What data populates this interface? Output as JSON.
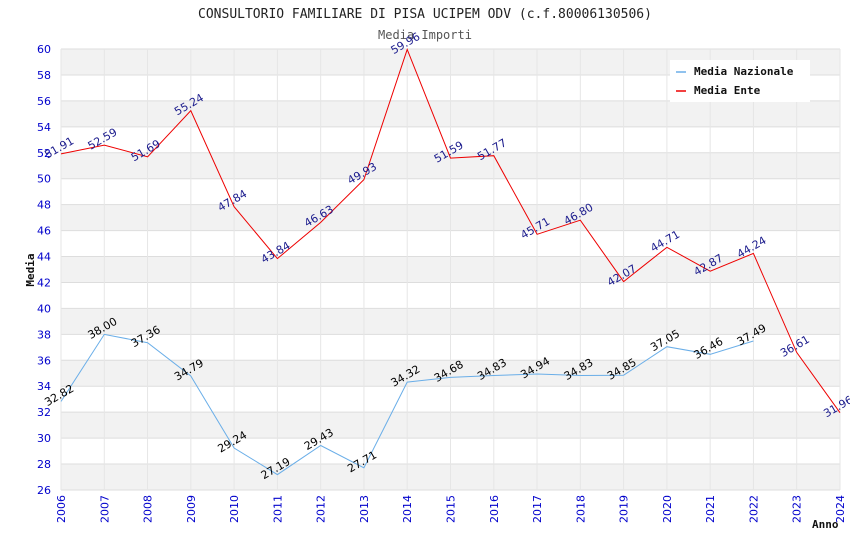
{
  "chart_data": {
    "type": "line",
    "title": "CONSULTORIO FAMILIARE DI PISA UCIPEM ODV (c.f.80006130506)",
    "subtitle": "Media Importi",
    "xlabel": "Anno",
    "ylabel": "Media",
    "ylim": [
      26,
      60
    ],
    "yticks": [
      26,
      28,
      30,
      32,
      34,
      36,
      38,
      40,
      42,
      44,
      46,
      48,
      50,
      52,
      54,
      56,
      58,
      60
    ],
    "x": [
      "2006",
      "2007",
      "2008",
      "2009",
      "2010",
      "2011",
      "2012",
      "2013",
      "2014",
      "2015",
      "2016",
      "2017",
      "2018",
      "2019",
      "2020",
      "2021",
      "2022",
      "2023",
      "2024"
    ],
    "grid": "horizontal bands",
    "legend_position": "top-right",
    "series": [
      {
        "name": "Media Nazionale",
        "color": "#6aaee8",
        "label_color": "#000000",
        "values": [
          32.82,
          38.0,
          37.36,
          34.79,
          29.24,
          27.19,
          29.43,
          27.71,
          34.32,
          34.68,
          34.83,
          34.94,
          34.83,
          34.85,
          37.05,
          36.46,
          37.49,
          null,
          null
        ],
        "labels": [
          "32.82",
          "38.00",
          "37.36",
          "34.79",
          "29.24",
          "27.19",
          "29.43",
          "27.71",
          "34.32",
          "34.68",
          "34.83",
          "34.94",
          "34.83",
          "34.85",
          "37.05",
          "36.46",
          "37.49",
          null,
          null
        ]
      },
      {
        "name": "Media Ente",
        "color": "#ee0000",
        "label_color": "#1a1a8c",
        "values": [
          51.91,
          52.59,
          51.69,
          55.24,
          47.84,
          43.84,
          46.63,
          49.93,
          59.96,
          51.59,
          51.77,
          45.71,
          46.8,
          42.07,
          44.71,
          42.87,
          44.24,
          36.61,
          31.96
        ],
        "labels": [
          "51.91",
          "52.59",
          "51.69",
          "55.24",
          "47.84",
          "43.84",
          "46.63",
          "49.93",
          "59.96",
          "51.59",
          "51.77",
          "45.71",
          "46.80",
          "42.07",
          "44.71",
          "42.87",
          "44.24",
          "36.61",
          "31.96"
        ]
      }
    ]
  }
}
